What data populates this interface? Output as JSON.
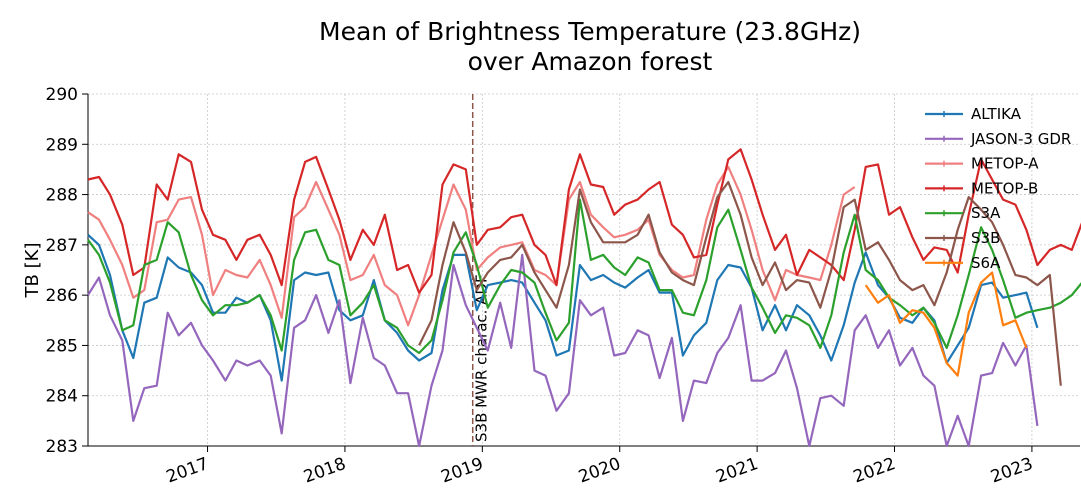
{
  "chart_data": {
    "type": "line",
    "title": [
      "Mean of Brightness Temperature (23.8GHz)",
      "over Amazon forest"
    ],
    "ylabel": "TB [K]",
    "xlim": [
      2016.13,
      2023.35
    ],
    "xticks": [
      2017,
      2018,
      2019,
      2020,
      2021,
      2022,
      2023
    ],
    "ylim": [
      283,
      290
    ],
    "yticks": [
      283,
      284,
      285,
      286,
      287,
      288,
      289,
      290
    ],
    "grid": true,
    "legend": "upper right",
    "annotation": {
      "text": "S3B MWR charac. ADF",
      "x": 2018.93,
      "color": "#8c564b"
    },
    "x": [
      2016.13,
      2016.21,
      2016.29,
      2016.38,
      2016.46,
      2016.54,
      2016.63,
      2016.71,
      2016.79,
      2016.88,
      2016.96,
      2017.04,
      2017.13,
      2017.21,
      2017.29,
      2017.38,
      2017.46,
      2017.54,
      2017.63,
      2017.71,
      2017.79,
      2017.88,
      2017.96,
      2018.04,
      2018.13,
      2018.21,
      2018.29,
      2018.38,
      2018.46,
      2018.54,
      2018.63,
      2018.71,
      2018.79,
      2018.88,
      2018.96,
      2019.04,
      2019.13,
      2019.21,
      2019.29,
      2019.38,
      2019.46,
      2019.54,
      2019.63,
      2019.71,
      2019.79,
      2019.88,
      2019.96,
      2020.04,
      2020.13,
      2020.21,
      2020.29,
      2020.38,
      2020.46,
      2020.54,
      2020.63,
      2020.71,
      2020.79,
      2020.88,
      2020.96,
      2021.04,
      2021.13,
      2021.21,
      2021.29,
      2021.38,
      2021.46,
      2021.54,
      2021.63,
      2021.71,
      2021.79,
      2021.88,
      2021.96,
      2022.04,
      2022.13,
      2022.21,
      2022.29,
      2022.38,
      2022.46,
      2022.54,
      2022.63,
      2022.71,
      2022.79,
      2022.88,
      2022.96,
      2023.04,
      2023.13,
      2023.21,
      2023.29,
      2023.38
    ],
    "series": [
      {
        "name": "ALTIKA",
        "color": "#1f77b4",
        "values": [
          287.2,
          287.0,
          286.4,
          285.3,
          284.75,
          285.85,
          285.95,
          286.75,
          286.55,
          286.45,
          286.2,
          285.65,
          285.65,
          285.95,
          285.85,
          286.0,
          285.5,
          284.3,
          286.3,
          286.45,
          286.4,
          286.45,
          285.7,
          285.5,
          285.6,
          286.3,
          285.5,
          285.25,
          284.9,
          284.7,
          284.85,
          286.1,
          286.8,
          286.8,
          285.7,
          286.2,
          286.25,
          286.3,
          286.25,
          285.85,
          285.5,
          284.8,
          284.9,
          286.6,
          286.3,
          286.4,
          286.25,
          286.15,
          286.35,
          286.5,
          286.05,
          286.05,
          284.8,
          285.2,
          285.45,
          286.3,
          286.6,
          286.55,
          286.15,
          285.3,
          285.8,
          285.3,
          285.8,
          285.6,
          285.2,
          284.7,
          285.4,
          286.25,
          286.85,
          286.2,
          285.95,
          285.55,
          285.45,
          285.75,
          285.5,
          284.65,
          285.0,
          285.35,
          286.2,
          286.25,
          285.95,
          286.0,
          286.05,
          285.35,
          null,
          null,
          null,
          null
        ]
      },
      {
        "name": "JASON-3 GDR",
        "color": "#9467bd",
        "values": [
          286.0,
          286.35,
          285.6,
          285.1,
          283.5,
          284.15,
          284.2,
          285.65,
          285.2,
          285.45,
          285.0,
          284.7,
          284.3,
          284.7,
          284.6,
          284.7,
          284.4,
          283.25,
          285.35,
          285.5,
          286.0,
          285.25,
          285.9,
          284.25,
          285.55,
          284.75,
          284.6,
          284.05,
          284.05,
          283.0,
          284.2,
          284.9,
          286.6,
          285.8,
          285.35,
          284.9,
          285.85,
          284.95,
          286.8,
          284.5,
          284.4,
          283.7,
          284.05,
          285.9,
          285.6,
          285.75,
          284.8,
          284.85,
          285.3,
          285.2,
          284.35,
          285.15,
          283.5,
          284.3,
          284.25,
          284.85,
          285.15,
          285.8,
          284.3,
          284.3,
          284.45,
          284.9,
          284.15,
          283.0,
          283.95,
          284.0,
          283.8,
          285.3,
          285.6,
          284.95,
          285.3,
          284.6,
          284.95,
          284.4,
          284.2,
          283.0,
          283.6,
          283.0,
          284.4,
          284.45,
          285.05,
          284.6,
          285.0,
          283.4,
          null,
          null,
          null,
          null
        ]
      },
      {
        "name": "METOP-A",
        "color": "#f08080",
        "values": [
          287.65,
          287.5,
          287.1,
          286.6,
          285.95,
          286.1,
          287.45,
          287.5,
          287.9,
          287.95,
          287.2,
          286.0,
          286.5,
          286.4,
          286.35,
          286.7,
          286.2,
          285.55,
          287.55,
          287.75,
          288.25,
          287.7,
          287.2,
          286.3,
          286.4,
          286.8,
          286.2,
          286.0,
          285.4,
          286.0,
          286.8,
          287.5,
          288.2,
          287.7,
          286.5,
          286.75,
          286.95,
          287.0,
          287.05,
          286.5,
          286.4,
          286.2,
          287.9,
          288.25,
          287.6,
          287.35,
          287.15,
          287.2,
          287.3,
          287.5,
          286.8,
          286.5,
          286.35,
          286.4,
          287.5,
          288.2,
          288.55,
          288.0,
          287.3,
          286.5,
          285.9,
          286.5,
          286.4,
          286.35,
          286.3,
          287.0,
          288.0,
          288.15,
          null,
          null,
          null,
          null,
          null,
          null,
          null,
          null,
          null,
          null,
          null,
          null,
          null,
          null,
          null,
          null,
          null,
          null,
          null,
          null
        ]
      },
      {
        "name": "METOP-B",
        "color": "#d62728",
        "values": [
          288.3,
          288.35,
          288.0,
          287.4,
          286.4,
          286.55,
          288.2,
          287.9,
          288.8,
          288.65,
          287.7,
          287.2,
          287.1,
          286.7,
          287.1,
          287.2,
          286.8,
          286.2,
          287.9,
          288.65,
          288.75,
          288.1,
          287.5,
          286.7,
          287.3,
          287.0,
          287.6,
          286.5,
          286.6,
          286.05,
          286.4,
          288.2,
          288.6,
          288.5,
          287.0,
          287.3,
          287.35,
          287.55,
          287.6,
          287.0,
          286.8,
          286.2,
          288.1,
          288.8,
          288.2,
          288.15,
          287.6,
          287.8,
          287.9,
          288.1,
          288.25,
          287.4,
          287.2,
          286.75,
          286.8,
          287.8,
          288.7,
          288.9,
          288.3,
          287.6,
          286.9,
          287.2,
          286.4,
          286.9,
          286.75,
          286.6,
          286.3,
          287.3,
          288.55,
          288.6,
          287.6,
          287.75,
          287.15,
          286.7,
          286.95,
          286.9,
          286.45,
          287.6,
          288.7,
          288.3,
          287.9,
          287.8,
          287.3,
          286.6,
          286.9,
          287.0,
          286.9,
          287.55
        ]
      },
      {
        "name": "S3A",
        "color": "#2ca02c",
        "values": [
          287.1,
          286.8,
          286.25,
          285.3,
          285.4,
          286.6,
          286.7,
          287.45,
          287.25,
          286.4,
          285.9,
          285.6,
          285.8,
          285.8,
          285.85,
          286.0,
          285.6,
          284.9,
          286.7,
          287.25,
          287.3,
          286.7,
          286.6,
          285.6,
          285.85,
          286.2,
          285.5,
          285.35,
          285.0,
          284.85,
          285.1,
          285.9,
          286.85,
          287.25,
          286.6,
          285.75,
          286.2,
          286.5,
          286.45,
          286.25,
          285.65,
          285.1,
          285.45,
          287.9,
          286.7,
          286.8,
          286.55,
          286.4,
          286.75,
          286.65,
          286.1,
          286.1,
          285.65,
          285.6,
          286.3,
          287.35,
          287.7,
          286.9,
          286.15,
          285.75,
          285.25,
          285.6,
          285.55,
          285.4,
          284.95,
          285.6,
          286.85,
          287.6,
          286.5,
          286.3,
          285.95,
          285.8,
          285.6,
          285.75,
          285.45,
          284.95,
          285.6,
          286.4,
          287.35,
          286.9,
          286.3,
          285.55,
          285.65,
          285.7,
          285.75,
          285.85,
          286.0,
          286.3
        ]
      },
      {
        "name": "S3B",
        "color": "#8c564b",
        "values": [
          null,
          null,
          null,
          null,
          null,
          null,
          null,
          null,
          null,
          null,
          null,
          null,
          null,
          null,
          null,
          null,
          null,
          null,
          null,
          null,
          null,
          null,
          null,
          null,
          null,
          null,
          null,
          null,
          null,
          285.0,
          285.5,
          286.6,
          287.45,
          286.85,
          286.1,
          286.45,
          286.7,
          286.75,
          287.0,
          286.45,
          286.1,
          285.75,
          286.6,
          288.1,
          287.45,
          287.05,
          287.05,
          287.05,
          287.2,
          287.6,
          286.85,
          286.45,
          286.3,
          286.2,
          287.15,
          287.95,
          288.25,
          287.6,
          286.75,
          286.2,
          286.65,
          286.1,
          286.3,
          286.25,
          285.75,
          286.5,
          287.75,
          287.9,
          286.9,
          287.05,
          286.7,
          286.3,
          286.1,
          286.2,
          285.8,
          286.45,
          287.3,
          287.95,
          287.7,
          287.45,
          287.0,
          286.4,
          286.35,
          286.2,
          286.4,
          284.2,
          null,
          null
        ]
      },
      {
        "name": "S6A",
        "color": "#ff7f0e",
        "values": [
          null,
          null,
          null,
          null,
          null,
          null,
          null,
          null,
          null,
          null,
          null,
          null,
          null,
          null,
          null,
          null,
          null,
          null,
          null,
          null,
          null,
          null,
          null,
          null,
          null,
          null,
          null,
          null,
          null,
          null,
          null,
          null,
          null,
          null,
          null,
          null,
          null,
          null,
          null,
          null,
          null,
          null,
          null,
          null,
          null,
          null,
          null,
          null,
          null,
          null,
          null,
          null,
          null,
          null,
          null,
          null,
          null,
          null,
          null,
          null,
          null,
          null,
          null,
          null,
          null,
          null,
          null,
          null,
          286.2,
          285.85,
          286.0,
          285.45,
          285.7,
          285.65,
          285.35,
          284.65,
          284.4,
          285.65,
          286.25,
          286.45,
          285.4,
          285.5,
          284.95,
          null,
          null,
          null,
          null,
          null
        ]
      }
    ]
  }
}
